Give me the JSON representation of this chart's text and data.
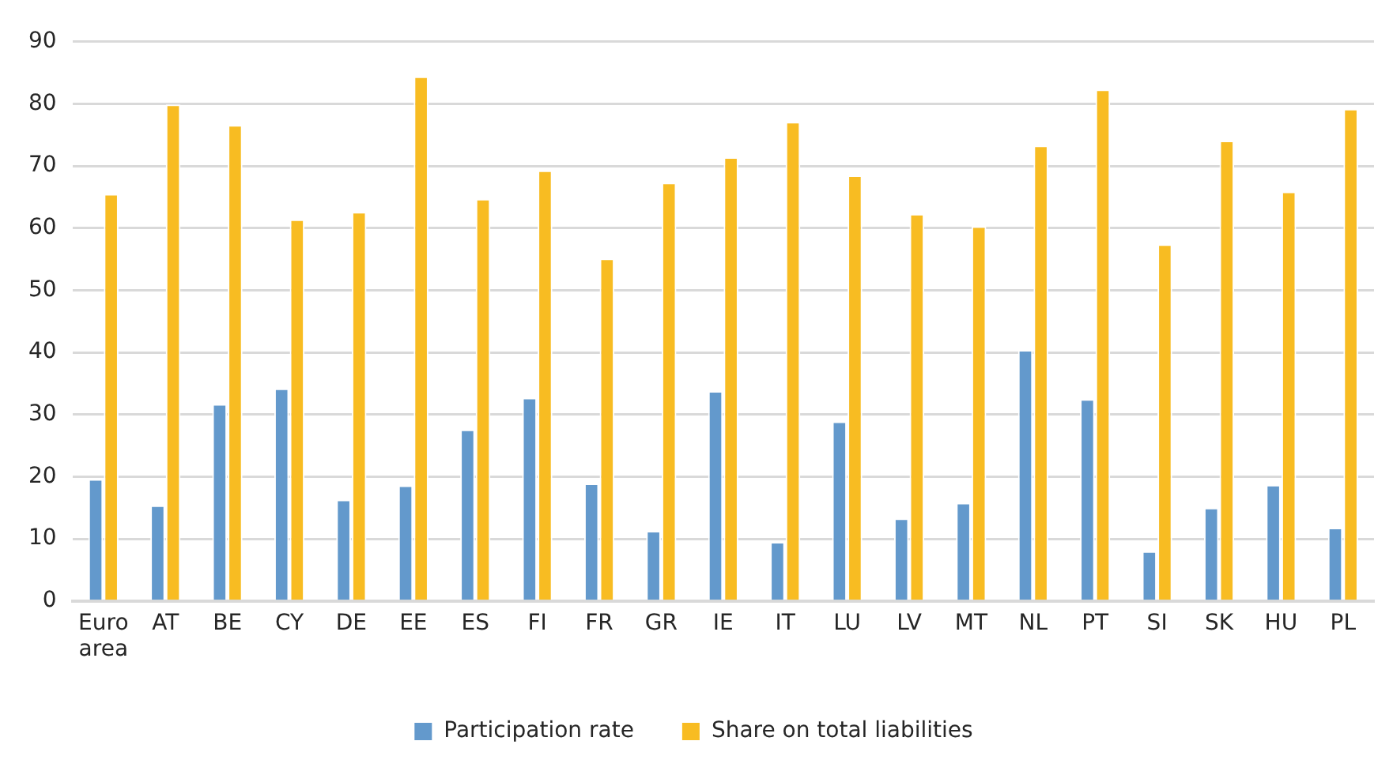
{
  "chart_data": {
    "type": "bar",
    "categories": [
      "Euro area",
      "AT",
      "BE",
      "CY",
      "DE",
      "EE",
      "ES",
      "FI",
      "FR",
      "GR",
      "IE",
      "IT",
      "LU",
      "LV",
      "MT",
      "NL",
      "PT",
      "SI",
      "SK",
      "HU",
      "PL"
    ],
    "series": [
      {
        "name": "Participation rate",
        "color": "#6399cc",
        "values": [
          19.6,
          15.4,
          31.7,
          34.2,
          16.3,
          18.6,
          27.6,
          32.7,
          18.9,
          11.3,
          33.8,
          9.5,
          28.9,
          13.3,
          15.8,
          40.4,
          32.5,
          8.0,
          15.0,
          18.7,
          11.8
        ]
      },
      {
        "name": "Share on total liabilities",
        "color": "#f8bc22",
        "values": [
          65.5,
          79.9,
          76.6,
          61.4,
          62.6,
          84.4,
          64.7,
          69.3,
          55.1,
          67.3,
          71.4,
          77.1,
          68.5,
          62.3,
          60.3,
          73.3,
          82.3,
          57.4,
          74.1,
          65.9,
          79.2
        ]
      }
    ],
    "ylim": [
      0,
      90
    ],
    "yticks": [
      0,
      10,
      20,
      30,
      40,
      50,
      60,
      70,
      80,
      90
    ],
    "grid": "y",
    "legend": "bottom"
  }
}
